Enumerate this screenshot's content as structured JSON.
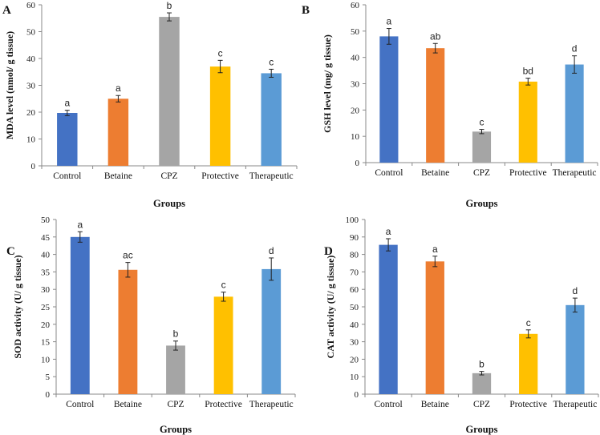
{
  "chart_data": [
    {
      "type": "bar",
      "panel": "A",
      "categories": [
        "Control",
        "Betaine",
        "CPZ",
        "Protective",
        "Therapeutic"
      ],
      "values": [
        19.7,
        25.0,
        55.5,
        37.0,
        34.5
      ],
      "errors": [
        1.0,
        1.2,
        1.5,
        2.3,
        1.5
      ],
      "significance": [
        "a",
        "a",
        "b",
        "c",
        "c"
      ],
      "xlabel": "Groups",
      "ylabel": "MDA level (nmol/ g tissue)",
      "ylim": [
        0,
        60
      ],
      "yticks": [
        0,
        10,
        20,
        30,
        40,
        50,
        60
      ]
    },
    {
      "type": "bar",
      "panel": "B",
      "categories": [
        "Control",
        "Betaine",
        "CPZ",
        "Protective",
        "Therapeutic"
      ],
      "values": [
        48.0,
        43.5,
        11.8,
        30.8,
        37.3
      ],
      "errors": [
        3.0,
        1.8,
        0.8,
        1.3,
        3.3
      ],
      "significance": [
        "a",
        "ab",
        "c",
        "bd",
        "d"
      ],
      "xlabel": "Groups",
      "ylabel": "GSH level (mg/ g tissue)",
      "ylim": [
        0,
        60
      ],
      "yticks": [
        0,
        10,
        20,
        30,
        40,
        50,
        60
      ]
    },
    {
      "type": "bar",
      "panel": "C",
      "categories": [
        "Control",
        "Betaine",
        "CPZ",
        "Protective",
        "Therapeutic"
      ],
      "values": [
        45.0,
        35.6,
        13.9,
        27.9,
        35.8
      ],
      "errors": [
        1.5,
        2.1,
        1.3,
        1.3,
        3.2
      ],
      "significance": [
        "a",
        "ac",
        "b",
        "c",
        "d"
      ],
      "xlabel": "Groups",
      "ylabel": "SOD activity (U/ g tissue)",
      "ylim": [
        0,
        50
      ],
      "yticks": [
        0,
        5,
        10,
        15,
        20,
        25,
        30,
        35,
        40,
        45,
        50
      ]
    },
    {
      "type": "bar",
      "panel": "D",
      "categories": [
        "Control",
        "Betaine",
        "CPZ",
        "Protective",
        "Therapeutic"
      ],
      "values": [
        85.5,
        76.0,
        12.0,
        34.5,
        51.0
      ],
      "errors": [
        3.5,
        3.0,
        1.0,
        2.3,
        4.0
      ],
      "significance": [
        "a",
        "a",
        "b",
        "c",
        "d"
      ],
      "xlabel": "Groups",
      "ylabel": "CAT activity (U/ g tissue)",
      "ylim": [
        0,
        100
      ],
      "yticks": [
        0,
        10,
        20,
        30,
        40,
        50,
        60,
        70,
        80,
        90,
        100
      ]
    }
  ],
  "colors": [
    "#4472C4",
    "#ED7D31",
    "#A5A5A5",
    "#FFC000",
    "#5B9BD5"
  ]
}
